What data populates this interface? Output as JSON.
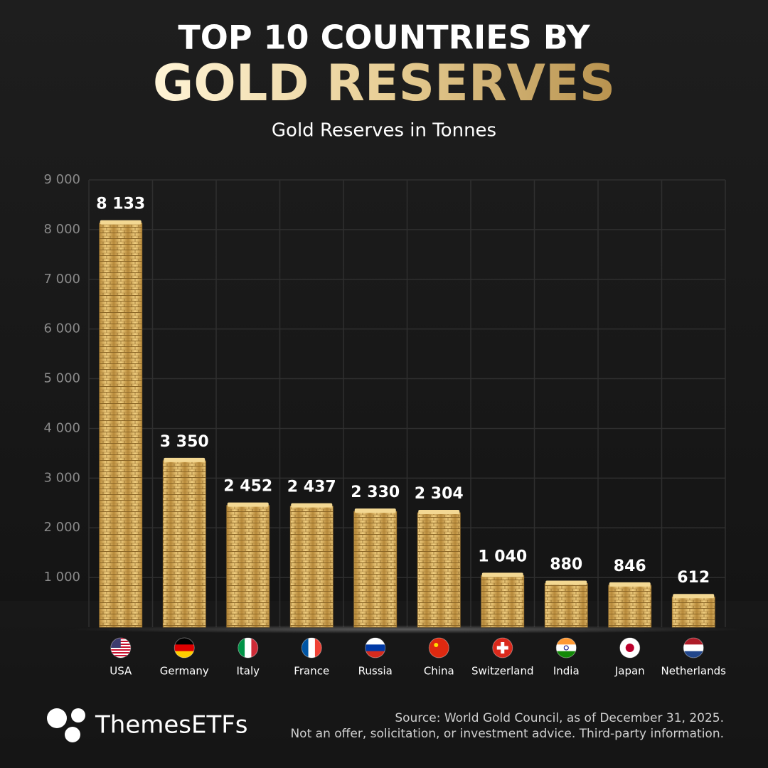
{
  "chart_data": {
    "type": "bar",
    "title": "TOP 10 COUNTRIES BY",
    "title_highlight": "GOLD RESERVES",
    "subtitle": "Gold Reserves in Tonnes",
    "categories": [
      "USA",
      "Germany",
      "Italy",
      "France",
      "Russia",
      "China",
      "Switzerland",
      "India",
      "Japan",
      "Netherlands"
    ],
    "values": [
      8133,
      3350,
      2452,
      2437,
      2330,
      2304,
      1040,
      880,
      846,
      612
    ],
    "value_labels": [
      "8 133",
      "3 350",
      "2 452",
      "2 437",
      "2 330",
      "2 304",
      "1 040",
      "880",
      "846",
      "612"
    ],
    "color": "#d9b25e",
    "ylim": [
      0,
      9000
    ],
    "yticks": [
      {
        "value": 1000,
        "label": "1 000"
      },
      {
        "value": 2000,
        "label": "2 000"
      },
      {
        "value": 3000,
        "label": "3 000"
      },
      {
        "value": 4000,
        "label": "4 000"
      },
      {
        "value": 5000,
        "label": "5 000"
      },
      {
        "value": 6000,
        "label": "6 000"
      },
      {
        "value": 7000,
        "label": "7 000"
      },
      {
        "value": 8000,
        "label": "8 000"
      },
      {
        "value": 9000,
        "label": "9 000"
      }
    ],
    "grid": true,
    "brand": "ThemesETFs",
    "source": "Source: World Gold Council, as of December 31, 2025.",
    "disclaimer": "Not an offer, solicitation, or investment advice. Third-party information."
  }
}
